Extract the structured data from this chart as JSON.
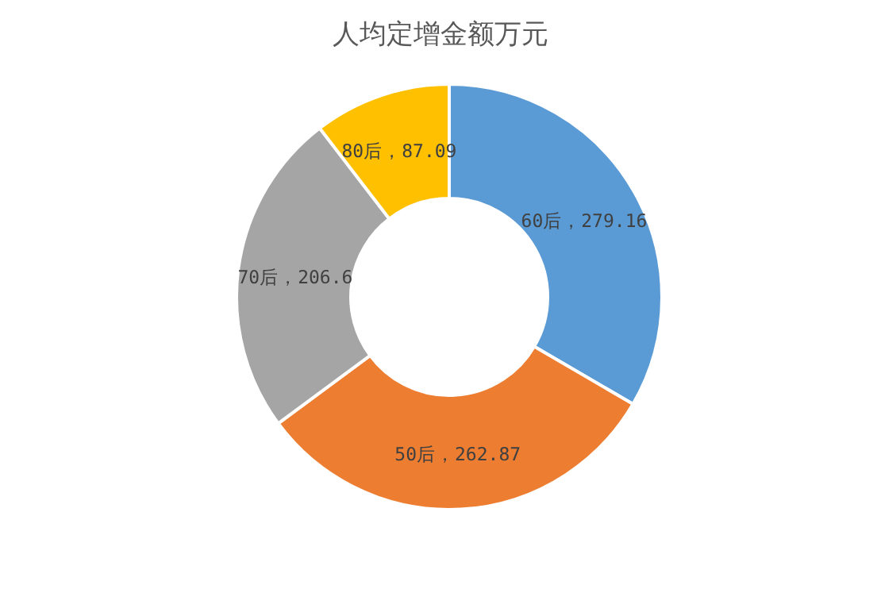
{
  "chart_data": {
    "type": "donut",
    "title": "人均定增金额万元",
    "categories": [
      "60后",
      "50后",
      "70后",
      "80后"
    ],
    "values": [
      279.16,
      262.87,
      206.6,
      87.09
    ],
    "colors": [
      "#5b9bd5",
      "#ed7d31",
      "#a5a5a5",
      "#ffc000"
    ],
    "value_labels": [
      "，279.16",
      "，262.87",
      "，206.6",
      "，87.09"
    ]
  }
}
